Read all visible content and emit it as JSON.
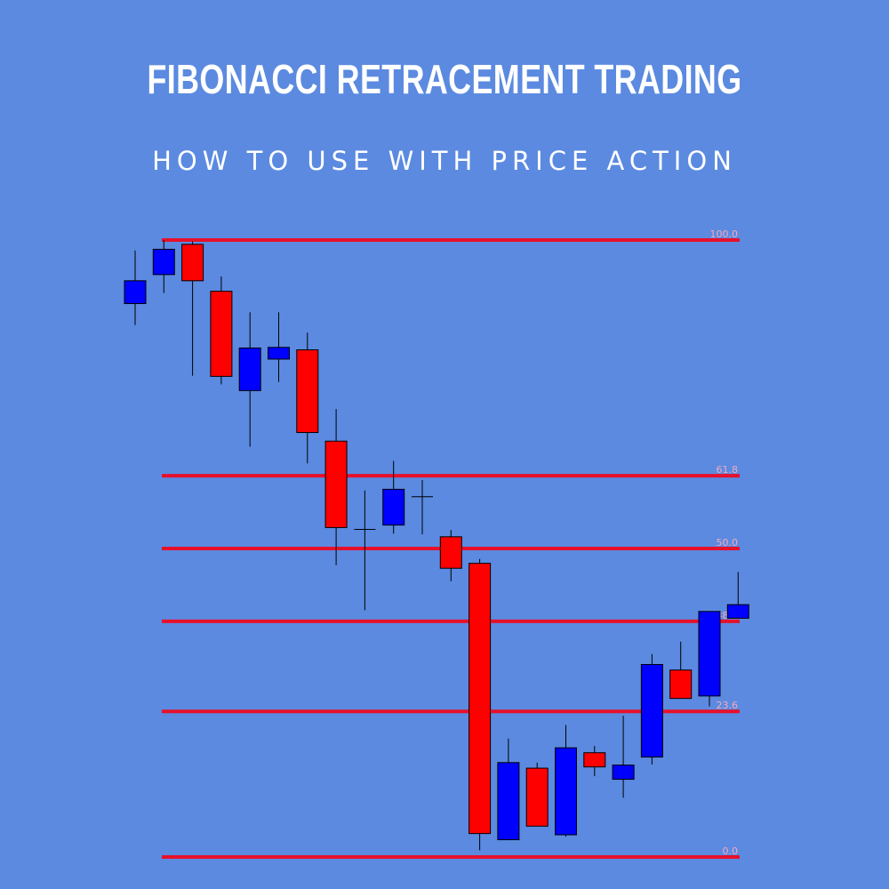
{
  "title": "FIBONACCI RETRACEMENT TRADING",
  "subtitle": "HOW TO USE WITH PRICE ACTION",
  "chart_data": {
    "type": "candlestick",
    "colors": {
      "up": "#0000ff",
      "down": "#ff0000",
      "wick": "#000000",
      "fib_line": "#e8102a",
      "fib_label": "#f4a9c0",
      "background": "#5b8ae0"
    },
    "fib_levels": [
      {
        "label": "100.0",
        "price": 100
      },
      {
        "label": "61.8",
        "price": 61.8
      },
      {
        "label": "50.0",
        "price": 50
      },
      {
        "label": "38.2",
        "price": 38.2
      },
      {
        "label": "23.6",
        "price": 23.6
      },
      {
        "label": "0.0",
        "price": 0
      }
    ],
    "candles": [
      {
        "open": 89.7,
        "close": 93.4,
        "high": 98.3,
        "low": 86.2
      },
      {
        "open": 94.4,
        "close": 98.5,
        "high": 100.0,
        "low": 91.4
      },
      {
        "open": 99.3,
        "close": 93.4,
        "high": 99.8,
        "low": 78.0
      },
      {
        "open": 91.7,
        "close": 77.9,
        "high": 94.1,
        "low": 76.6
      },
      {
        "open": 75.6,
        "close": 82.5,
        "high": 88.3,
        "low": 66.5
      },
      {
        "open": 80.7,
        "close": 82.6,
        "high": 88.3,
        "low": 77.0
      },
      {
        "open": 82.2,
        "close": 68.8,
        "high": 85.0,
        "low": 63.8
      },
      {
        "open": 67.4,
        "close": 53.4,
        "high": 72.6,
        "low": 47.3
      },
      {
        "open": 53.1,
        "close": 53.1,
        "high": 59.4,
        "low": 40.0
      },
      {
        "open": 53.8,
        "close": 59.6,
        "high": 64.2,
        "low": 52.4
      },
      {
        "open": 58.4,
        "close": 58.4,
        "high": 61.1,
        "low": 52.3
      },
      {
        "open": 51.9,
        "close": 46.8,
        "high": 53.0,
        "low": 44.7
      },
      {
        "open": 47.6,
        "close": 3.8,
        "high": 48.3,
        "low": 1.1
      },
      {
        "open": 2.8,
        "close": 15.3,
        "high": 19.2,
        "low": 2.8
      },
      {
        "open": 14.4,
        "close": 5.0,
        "high": 15.3,
        "low": 5.0
      },
      {
        "open": 3.6,
        "close": 17.7,
        "high": 21.4,
        "low": 3.3
      },
      {
        "open": 16.9,
        "close": 14.6,
        "high": 18.0,
        "low": 13.1
      },
      {
        "open": 12.6,
        "close": 14.9,
        "high": 22.9,
        "low": 9.6
      },
      {
        "open": 16.2,
        "close": 31.2,
        "high": 32.9,
        "low": 15.0
      },
      {
        "open": 30.3,
        "close": 25.7,
        "high": 34.9,
        "low": 25.7
      },
      {
        "open": 26.1,
        "close": 39.8,
        "high": 39.8,
        "low": 24.4
      },
      {
        "open": 38.7,
        "close": 40.9,
        "high": 46.2,
        "low": 38.7
      }
    ]
  }
}
